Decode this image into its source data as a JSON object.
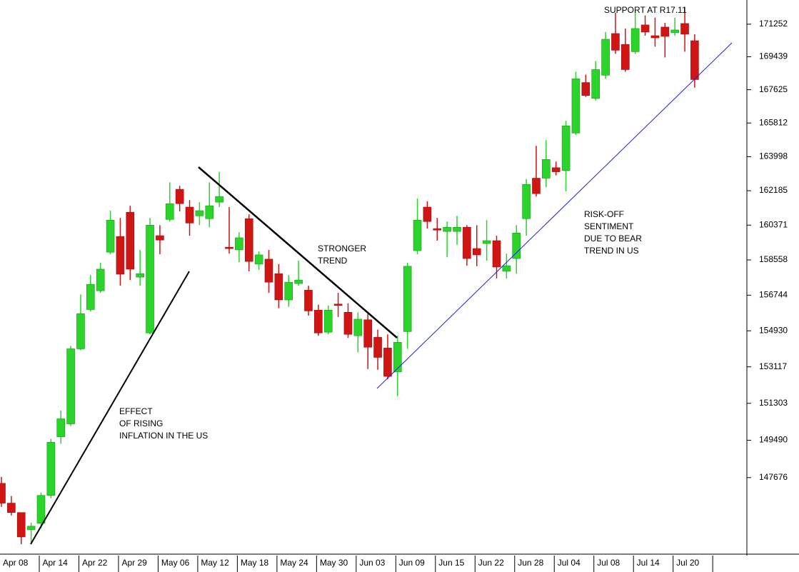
{
  "chart_data": {
    "type": "candlestick",
    "categories": [
      "Apr 08",
      null,
      null,
      null,
      "Apr 14",
      null,
      null,
      null,
      "Apr 22",
      null,
      null,
      null,
      "Apr 29",
      null,
      null,
      null,
      "May 06",
      null,
      null,
      null,
      "May 12",
      null,
      null,
      null,
      "May 18",
      null,
      null,
      null,
      "May 24",
      null,
      null,
      null,
      "May 30",
      null,
      null,
      null,
      "Jun 03",
      null,
      null,
      null,
      "Jun 09",
      null,
      null,
      null,
      "Jun 15",
      null,
      null,
      null,
      "Jun 22",
      null,
      null,
      null,
      "Jun 28",
      null,
      null,
      null,
      "Jul 04",
      null,
      null,
      null,
      "Jul 08",
      null,
      null,
      null,
      "Jul 14",
      null,
      null,
      null,
      "Jul 20",
      null,
      null
    ],
    "values": [
      [
        147400,
        147710,
        146270,
        146450
      ],
      [
        146450,
        146790,
        145860,
        146000
      ],
      [
        146000,
        146000,
        144500,
        144840
      ],
      [
        145180,
        145520,
        144570,
        145350
      ],
      [
        145490,
        146960,
        145250,
        146820
      ],
      [
        146820,
        149560,
        146680,
        149390
      ],
      [
        149660,
        150950,
        149320,
        150540
      ],
      [
        150290,
        154170,
        150180,
        154020
      ],
      [
        154020,
        156780,
        153950,
        155800
      ],
      [
        156010,
        157780,
        155910,
        157300
      ],
      [
        156970,
        158410,
        156860,
        158080
      ],
      [
        158960,
        161130,
        158850,
        160630
      ],
      [
        159780,
        160750,
        157230,
        157820
      ],
      [
        161050,
        161390,
        157520,
        158080
      ],
      [
        157670,
        159080,
        157230,
        157850
      ],
      [
        154820,
        160750,
        154750,
        160370
      ],
      [
        159820,
        160370,
        158850,
        159590
      ],
      [
        160670,
        162630,
        160560,
        161500
      ],
      [
        162260,
        162440,
        161090,
        161500
      ],
      [
        161320,
        161690,
        159820,
        160480
      ],
      [
        160860,
        161580,
        160370,
        161130
      ],
      [
        160710,
        162630,
        160260,
        161390
      ],
      [
        161580,
        163180,
        161320,
        161880
      ],
      [
        159220,
        161320,
        158890,
        159150
      ],
      [
        159080,
        160000,
        158450,
        159710
      ],
      [
        160710,
        160940,
        157970,
        158480
      ],
      [
        158340,
        159000,
        158040,
        158820
      ],
      [
        158600,
        159080,
        156860,
        157410
      ],
      [
        157850,
        158340,
        156080,
        156500
      ],
      [
        156500,
        157780,
        156150,
        157410
      ],
      [
        157340,
        158520,
        157230,
        157520
      ],
      [
        157000,
        157230,
        155700,
        155940
      ],
      [
        155980,
        156260,
        154680,
        154820
      ],
      [
        154860,
        156220,
        154750,
        155980
      ],
      [
        156290,
        156860,
        155630,
        156220
      ],
      [
        155870,
        156330,
        154570,
        154750
      ],
      [
        154680,
        155870,
        153840,
        155520
      ],
      [
        155490,
        155800,
        153010,
        154100
      ],
      [
        154600,
        154990,
        152970,
        153590
      ],
      [
        154060,
        154750,
        152500,
        152640
      ],
      [
        152860,
        154680,
        151660,
        154350
      ],
      [
        154890,
        158410,
        154020,
        158230
      ],
      [
        159040,
        161770,
        158850,
        160630
      ],
      [
        161320,
        161620,
        160190,
        160560
      ],
      [
        160190,
        160750,
        159560,
        160110
      ],
      [
        160040,
        160560,
        158710,
        160260
      ],
      [
        160040,
        160860,
        159340,
        160260
      ],
      [
        160260,
        160370,
        158260,
        158630
      ],
      [
        159150,
        160370,
        158230,
        158820
      ],
      [
        159410,
        160630,
        158520,
        159560
      ],
      [
        159560,
        159820,
        157600,
        158190
      ],
      [
        157970,
        158890,
        157600,
        158260
      ],
      [
        158630,
        160370,
        157850,
        159960
      ],
      [
        160710,
        162810,
        159820,
        162520
      ],
      [
        162850,
        164580,
        161880,
        162030
      ],
      [
        162850,
        164890,
        162370,
        163850
      ],
      [
        163410,
        163740,
        163000,
        163190
      ],
      [
        163260,
        165930,
        162150,
        165660
      ],
      [
        165270,
        168610,
        165160,
        168220
      ],
      [
        168020,
        168450,
        167230,
        167310
      ],
      [
        167150,
        169200,
        167030,
        168730
      ],
      [
        168420,
        170810,
        168220,
        170410
      ],
      [
        170730,
        171900,
        169600,
        169800
      ],
      [
        170120,
        171010,
        168610,
        168730
      ],
      [
        169720,
        172020,
        169600,
        171010
      ],
      [
        171210,
        171740,
        170610,
        170810
      ],
      [
        170610,
        171620,
        170000,
        170490
      ],
      [
        171090,
        171330,
        169400,
        170570
      ],
      [
        170770,
        171620,
        170610,
        170930
      ],
      [
        171290,
        172220,
        169720,
        170690
      ],
      [
        170330,
        170690,
        167740,
        168180
      ]
    ],
    "up_color": "#2bd42b",
    "down_color": "#d01515",
    "ylim": [
      144130,
      172610
    ],
    "log_scale": true,
    "yticks": [
      171252,
      169439,
      167625,
      165812,
      163998,
      162185,
      160371,
      158558,
      156744,
      154930,
      153117,
      151303,
      149490,
      147676
    ],
    "annotations": [
      {
        "lines": [
          "SUPPORT AT R17.11"
        ]
      },
      {
        "lines": [
          "STRONGER",
          "TREND"
        ]
      },
      {
        "lines": [
          "EFFECT",
          "OF RISING",
          "INFLATION IN THE US"
        ]
      },
      {
        "lines": [
          "RISK-OFF",
          "SENTIMENT",
          "DUE TO BEAR",
          "TREND IN US"
        ]
      }
    ],
    "annotation_color": "#2323e6"
  }
}
